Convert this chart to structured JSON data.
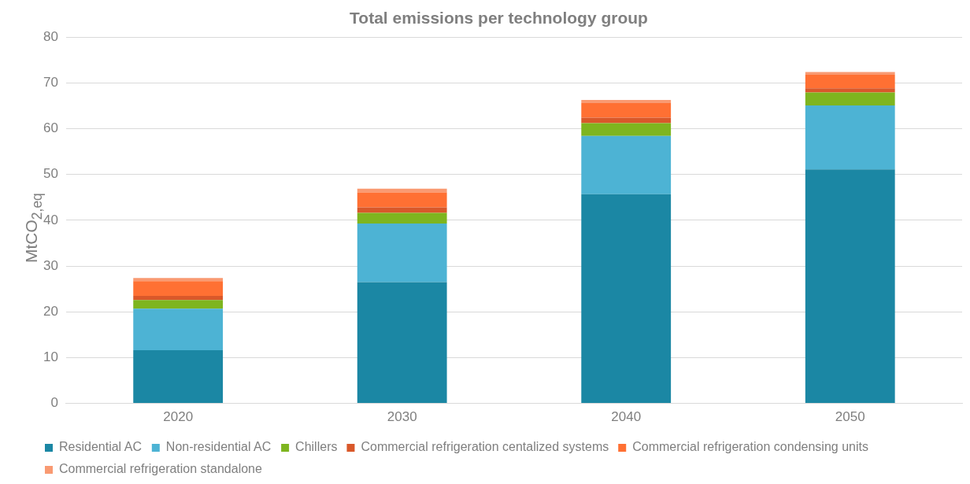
{
  "chart_data": {
    "type": "bar",
    "title": "Total emissions per technology group",
    "ylabel": "MtCO$_{2,eq}$",
    "categories": [
      "2020",
      "2030",
      "2040",
      "2050"
    ],
    "stacked": true,
    "series": [
      {
        "name": "Residential AC",
        "color": "#1b87a4",
        "values": [
          11.6,
          26.5,
          45.7,
          51.1
        ]
      },
      {
        "name": "Non-residential AC",
        "color": "#4db3d4",
        "values": [
          9.1,
          12.8,
          12.7,
          14.0
        ]
      },
      {
        "name": "Chillers",
        "color": "#7eb51f",
        "values": [
          1.9,
          2.3,
          2.8,
          2.8
        ]
      },
      {
        "name": "Commercial refrigeration centalized systems",
        "color": "#d9582a",
        "values": [
          0.9,
          1.2,
          1.2,
          0.9
        ]
      },
      {
        "name": "Commercial refrigeration condensing units",
        "color": "#ff7033",
        "values": [
          3.2,
          3.3,
          3.2,
          3.0
        ]
      },
      {
        "name": "Commercial refrigeration standalone",
        "color": "#f99a72",
        "values": [
          0.7,
          0.8,
          0.7,
          0.6
        ]
      }
    ],
    "ylim": [
      0,
      80
    ],
    "yticks": [
      0,
      10,
      20,
      30,
      40,
      50,
      60,
      70,
      80
    ],
    "grid": "y",
    "legend": "bottom"
  }
}
